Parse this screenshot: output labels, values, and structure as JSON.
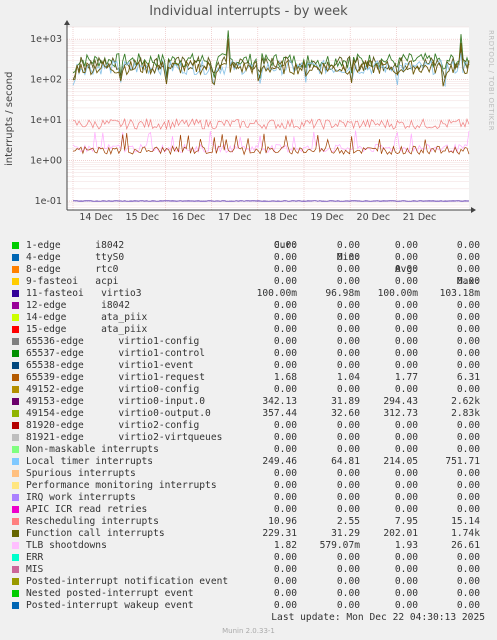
{
  "title": "Individual interrupts - by week",
  "side_label": "RRDTOOL / TOBI OETIKER",
  "ylabel": "interrupts / second",
  "chart_data": {
    "type": "line",
    "title": "Individual interrupts - by week",
    "ylabel": "interrupts / second",
    "yscale": "log",
    "ylim": [
      0.06,
      2000
    ],
    "y_ticks": [
      "1e+03",
      "1e+02",
      "1e+01",
      "1e+00",
      "1e-01"
    ],
    "x_ticks": [
      "14 Dec",
      "15 Dec",
      "16 Dec",
      "17 Dec",
      "18 Dec",
      "19 Dec",
      "20 Dec",
      "21 Dec"
    ],
    "grid": true,
    "series": [
      {
        "name": "49154-edge virtio0-output.0",
        "color": "#3a7d2a",
        "approx_level": 300
      },
      {
        "name": "49153-edge virtio0-input.0",
        "color": "#5a5a1a",
        "approx_level": 250
      },
      {
        "name": "Local timer interrupts",
        "color": "#8ec5e8",
        "approx_level": 200
      },
      {
        "name": "Function call interrupts",
        "color": "#6e5a0a",
        "approx_level": 200
      },
      {
        "name": "Rescheduling interrupts",
        "color": "#f08080",
        "approx_level": 8
      },
      {
        "name": "TLB shootdowns",
        "color": "#ffaaff",
        "approx_level": 2
      },
      {
        "name": "65539-edge virtio1-request",
        "color": "#a04000",
        "approx_level": 1.8
      },
      {
        "name": "11-fasteoi virtio3",
        "color": "#330099",
        "approx_level": 0.1
      }
    ]
  },
  "legend": {
    "headers": [
      "Cur:",
      "Min:",
      "Avg:",
      "Max:"
    ],
    "rows": [
      {
        "label": "1-edge      i8042",
        "color": "#00cc00",
        "cur": "0.00",
        "min": "0.00",
        "avg": "0.00",
        "max": "0.00"
      },
      {
        "label": "4-edge      ttyS0",
        "color": "#0066b3",
        "cur": "0.00",
        "min": "0.00",
        "avg": "0.00",
        "max": "0.00"
      },
      {
        "label": "8-edge      rtc0",
        "color": "#ff8000",
        "cur": "0.00",
        "min": "0.00",
        "avg": "0.00",
        "max": "0.00"
      },
      {
        "label": "9-fasteoi   acpi",
        "color": "#ffcc00",
        "cur": "0.00",
        "min": "0.00",
        "avg": "0.00",
        "max": "0.00"
      },
      {
        "label": "11-fasteoi   virtio3",
        "color": "#330099",
        "cur": "100.00m",
        "min": "96.98m",
        "avg": "100.00m",
        "max": "103.18m"
      },
      {
        "label": "12-edge      i8042",
        "color": "#990099",
        "cur": "0.00",
        "min": "0.00",
        "avg": "0.00",
        "max": "0.00"
      },
      {
        "label": "14-edge      ata_piix",
        "color": "#ccff00",
        "cur": "0.00",
        "min": "0.00",
        "avg": "0.00",
        "max": "0.00"
      },
      {
        "label": "15-edge      ata_piix",
        "color": "#ff0000",
        "cur": "0.00",
        "min": "0.00",
        "avg": "0.00",
        "max": "0.00"
      },
      {
        "label": "65536-edge      virtio1-config",
        "color": "#808080",
        "cur": "0.00",
        "min": "0.00",
        "avg": "0.00",
        "max": "0.00"
      },
      {
        "label": "65537-edge      virtio1-control",
        "color": "#008f00",
        "cur": "0.00",
        "min": "0.00",
        "avg": "0.00",
        "max": "0.00"
      },
      {
        "label": "65538-edge      virtio1-event",
        "color": "#00487d",
        "cur": "0.00",
        "min": "0.00",
        "avg": "0.00",
        "max": "0.00"
      },
      {
        "label": "65539-edge      virtio1-request",
        "color": "#b35a00",
        "cur": "1.68",
        "min": "1.04",
        "avg": "1.77",
        "max": "6.31"
      },
      {
        "label": "49152-edge      virtio0-config",
        "color": "#b38f00",
        "cur": "0.00",
        "min": "0.00",
        "avg": "0.00",
        "max": "0.00"
      },
      {
        "label": "49153-edge      virtio0-input.0",
        "color": "#6b006b",
        "cur": "342.13",
        "min": "31.89",
        "avg": "294.43",
        "max": "2.62k"
      },
      {
        "label": "49154-edge      virtio0-output.0",
        "color": "#8fb300",
        "cur": "357.44",
        "min": "32.60",
        "avg": "312.73",
        "max": "2.83k"
      },
      {
        "label": "81920-edge      virtio2-config",
        "color": "#b30000",
        "cur": "0.00",
        "min": "0.00",
        "avg": "0.00",
        "max": "0.00"
      },
      {
        "label": "81921-edge      virtio2-virtqueues",
        "color": "#bebebe",
        "cur": "0.00",
        "min": "0.00",
        "avg": "0.00",
        "max": "0.00"
      },
      {
        "label": "Non-maskable interrupts",
        "color": "#80ff80",
        "cur": "0.00",
        "min": "0.00",
        "avg": "0.00",
        "max": "0.00"
      },
      {
        "label": "Local timer interrupts",
        "color": "#80c9ff",
        "cur": "249.46",
        "min": "64.81",
        "avg": "214.05",
        "max": "751.71"
      },
      {
        "label": "Spurious interrupts",
        "color": "#ffc080",
        "cur": "0.00",
        "min": "0.00",
        "avg": "0.00",
        "max": "0.00"
      },
      {
        "label": "Performance monitoring interrupts",
        "color": "#ffe680",
        "cur": "0.00",
        "min": "0.00",
        "avg": "0.00",
        "max": "0.00"
      },
      {
        "label": "IRQ work interrupts",
        "color": "#aa80ff",
        "cur": "0.00",
        "min": "0.00",
        "avg": "0.00",
        "max": "0.00"
      },
      {
        "label": "APIC ICR read retries",
        "color": "#ee00cc",
        "cur": "0.00",
        "min": "0.00",
        "avg": "0.00",
        "max": "0.00"
      },
      {
        "label": "Rescheduling interrupts",
        "color": "#ff8080",
        "cur": "10.96",
        "min": "2.55",
        "avg": "7.95",
        "max": "15.14"
      },
      {
        "label": "Function call interrupts",
        "color": "#666600",
        "cur": "229.31",
        "min": "31.29",
        "avg": "202.01",
        "max": "1.74k"
      },
      {
        "label": "TLB shootdowns",
        "color": "#ffbfff",
        "cur": "1.82",
        "min": "579.07m",
        "avg": "1.93",
        "max": "26.61"
      },
      {
        "label": "ERR",
        "color": "#00ffcc",
        "cur": "0.00",
        "min": "0.00",
        "avg": "0.00",
        "max": "0.00"
      },
      {
        "label": "MIS",
        "color": "#cc6699",
        "cur": "0.00",
        "min": "0.00",
        "avg": "0.00",
        "max": "0.00"
      },
      {
        "label": "Posted-interrupt notification event",
        "color": "#999900",
        "cur": "0.00",
        "min": "0.00",
        "avg": "0.00",
        "max": "0.00"
      },
      {
        "label": "Nested posted-interrupt event",
        "color": "#00cc00",
        "cur": "0.00",
        "min": "0.00",
        "avg": "0.00",
        "max": "0.00"
      },
      {
        "label": "Posted-interrupt wakeup event",
        "color": "#0066b3",
        "cur": "0.00",
        "min": "0.00",
        "avg": "0.00",
        "max": "0.00"
      }
    ]
  },
  "last_update": "Last update:  Mon Dec 22 04:30:13 2025",
  "munin_version": "Munin 2.0.33-1"
}
